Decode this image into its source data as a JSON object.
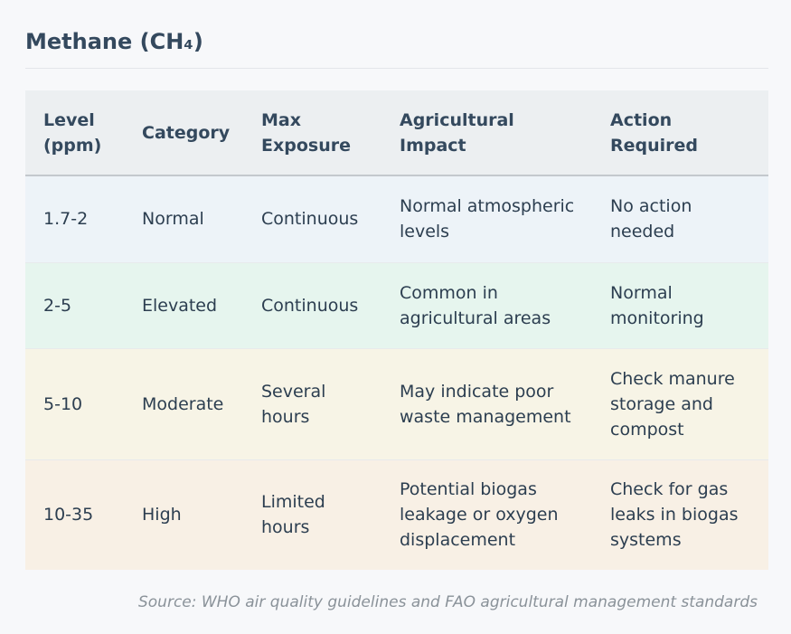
{
  "title": "Methane (CH₄)",
  "table": {
    "headers": [
      "Level (ppm)",
      "Category",
      "Max Exposure",
      "Agricultural Impact",
      "Action Required"
    ],
    "rows": [
      [
        "1.7-2",
        "Normal",
        "Continuous",
        "Normal atmospheric levels",
        "No action needed"
      ],
      [
        "2-5",
        "Elevated",
        "Continuous",
        "Common in agricultural areas",
        "Normal monitoring"
      ],
      [
        "5-10",
        "Moderate",
        "Several hours",
        "May indicate poor waste management",
        "Check manure storage and compost"
      ],
      [
        "10-35",
        "High",
        "Limited hours",
        "Potential biogas leakage or oxygen displacement",
        "Check for gas leaks in biogas systems"
      ]
    ]
  },
  "colors": {
    "normal": "#edf3f8",
    "elevated": "#e6f5ee",
    "moderate": "#f7f4e6",
    "high": "#f8f0e5",
    "header": "#eceff1"
  },
  "source": "Source: WHO air quality guidelines and FAO agricultural management standards"
}
